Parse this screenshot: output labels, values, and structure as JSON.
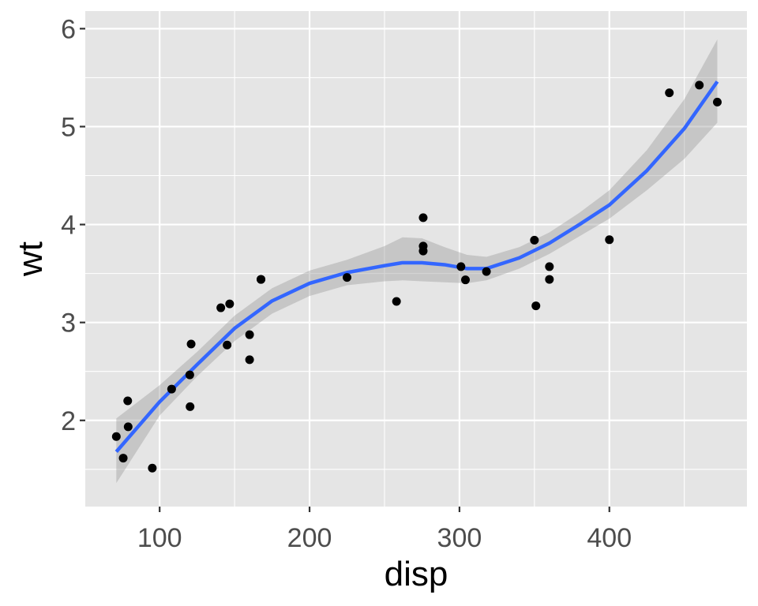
{
  "chart_data": {
    "type": "scatter",
    "xlabel": "disp",
    "ylabel": "wt",
    "xlim": [
      50.39,
      491.77
    ],
    "ylim": [
      1.12,
      6.18
    ],
    "x_ticks": [
      100,
      200,
      300,
      400
    ],
    "x_tick_labels": [
      "100",
      "200",
      "300",
      "400"
    ],
    "x_minor_ticks": [
      150,
      250,
      350,
      450
    ],
    "y_ticks": [
      2,
      3,
      4,
      5,
      6
    ],
    "y_tick_labels": [
      "2",
      "3",
      "4",
      "5",
      "6"
    ],
    "y_minor_ticks": [
      1.5,
      2.5,
      3.5,
      4.5,
      5.5
    ],
    "grid": true,
    "legend": "none",
    "colors": {
      "panel_background": "#e5e5e5",
      "grid": "#ffffff",
      "points": "#000000",
      "smooth_line": "#3366ff",
      "confidence_band": "#999999"
    },
    "points": [
      {
        "x": 160,
        "y": 2.62
      },
      {
        "x": 160,
        "y": 2.875
      },
      {
        "x": 108,
        "y": 2.32
      },
      {
        "x": 258,
        "y": 3.215
      },
      {
        "x": 360,
        "y": 3.44
      },
      {
        "x": 225,
        "y": 3.46
      },
      {
        "x": 360,
        "y": 3.57
      },
      {
        "x": 146.7,
        "y": 3.19
      },
      {
        "x": 140.8,
        "y": 3.15
      },
      {
        "x": 167.6,
        "y": 3.44
      },
      {
        "x": 167.6,
        "y": 3.44
      },
      {
        "x": 275.8,
        "y": 4.07
      },
      {
        "x": 275.8,
        "y": 3.73
      },
      {
        "x": 275.8,
        "y": 3.78
      },
      {
        "x": 472,
        "y": 5.25
      },
      {
        "x": 460,
        "y": 5.424
      },
      {
        "x": 440,
        "y": 5.345
      },
      {
        "x": 78.7,
        "y": 2.2
      },
      {
        "x": 75.7,
        "y": 1.615
      },
      {
        "x": 71.1,
        "y": 1.835
      },
      {
        "x": 120.1,
        "y": 2.465
      },
      {
        "x": 318,
        "y": 3.52
      },
      {
        "x": 304,
        "y": 3.435
      },
      {
        "x": 350,
        "y": 3.84
      },
      {
        "x": 400,
        "y": 3.845
      },
      {
        "x": 79,
        "y": 1.935
      },
      {
        "x": 120.3,
        "y": 2.14
      },
      {
        "x": 95.1,
        "y": 1.513
      },
      {
        "x": 351,
        "y": 3.17
      },
      {
        "x": 145,
        "y": 2.77
      },
      {
        "x": 301,
        "y": 3.57
      },
      {
        "x": 121,
        "y": 2.78
      }
    ],
    "smooth": {
      "method": "loess",
      "x": [
        71.1,
        100,
        125,
        150,
        175,
        200,
        225,
        250,
        262,
        275,
        290,
        305,
        318,
        340,
        360,
        380,
        400,
        425,
        450,
        472
      ],
      "y": [
        1.68,
        2.19,
        2.57,
        2.94,
        3.22,
        3.4,
        3.51,
        3.58,
        3.61,
        3.61,
        3.59,
        3.55,
        3.55,
        3.66,
        3.81,
        4.0,
        4.2,
        4.55,
        4.98,
        5.46
      ],
      "ymin": [
        1.36,
        2.05,
        2.45,
        2.81,
        3.09,
        3.27,
        3.38,
        3.42,
        3.43,
        3.42,
        3.41,
        3.4,
        3.43,
        3.55,
        3.7,
        3.88,
        4.06,
        4.35,
        4.67,
        5.04
      ],
      "ymax": [
        2.02,
        2.36,
        2.7,
        3.07,
        3.35,
        3.53,
        3.64,
        3.78,
        3.87,
        3.86,
        3.77,
        3.69,
        3.67,
        3.77,
        3.92,
        4.12,
        4.35,
        4.76,
        5.28,
        5.89
      ]
    }
  }
}
